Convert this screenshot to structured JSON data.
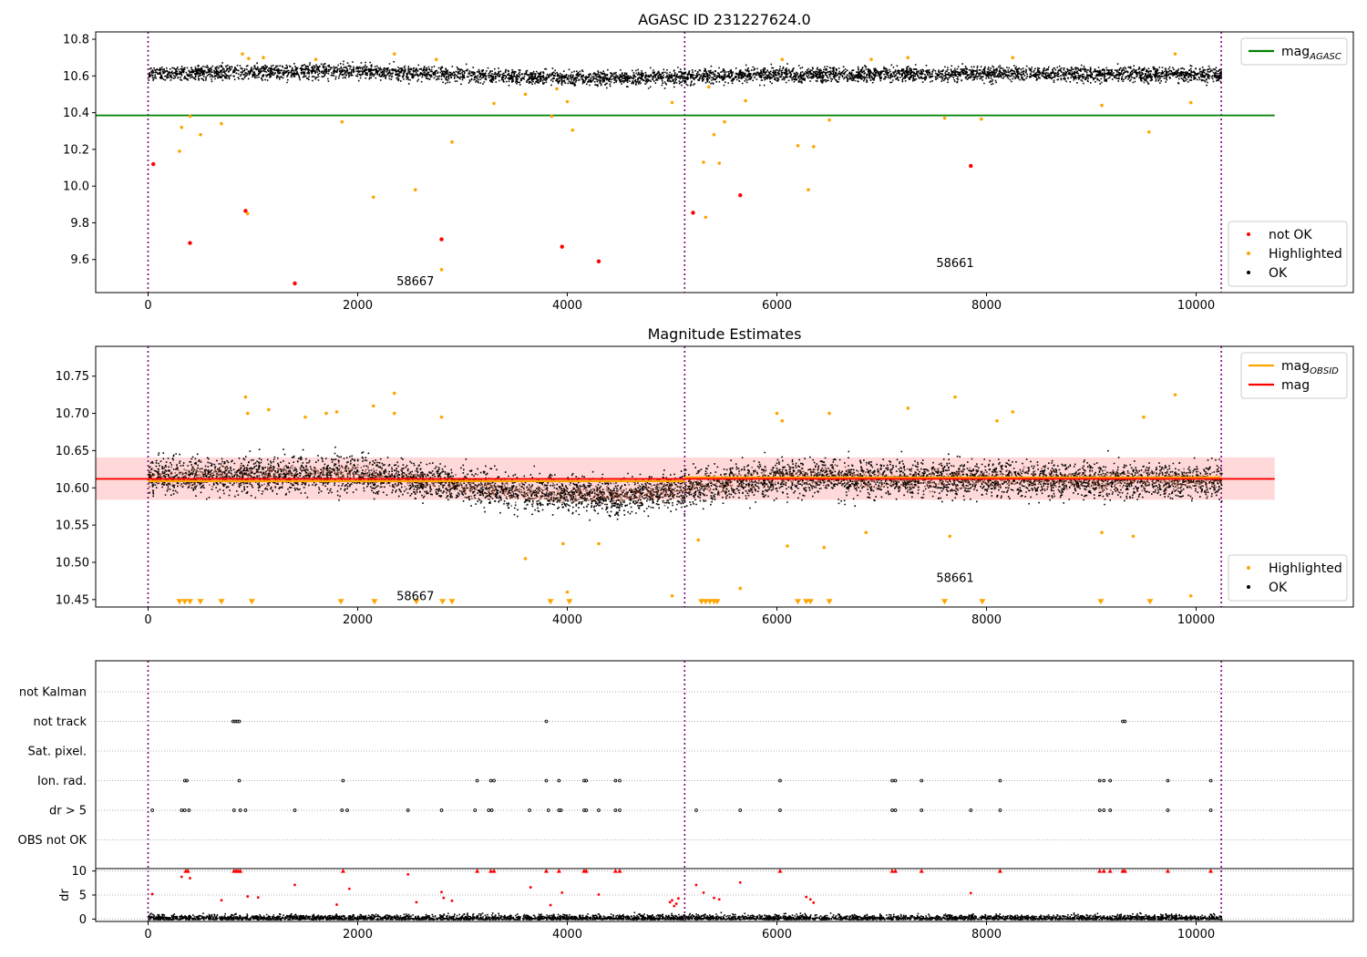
{
  "chart_data": [
    {
      "type": "scatter",
      "title": "AGASC ID 231227624.0",
      "xlim": [
        -500,
        11500
      ],
      "ylim": [
        9.42,
        10.84
      ],
      "xticks": [
        0,
        2000,
        4000,
        6000,
        8000,
        10000
      ],
      "yticks": [
        9.6,
        9.8,
        10.0,
        10.2,
        10.4,
        10.6,
        10.8
      ],
      "obsid_boundaries": [
        0,
        5120,
        10240
      ],
      "obsid_labels": [
        {
          "text": "58667",
          "x": 2550,
          "y": 9.485
        },
        {
          "text": "58661",
          "x": 7700,
          "y": 9.585
        }
      ],
      "ok_band": {
        "x0": 0,
        "x1": 10240,
        "segments": [
          [
            0,
            10.62
          ],
          [
            2000,
            10.63
          ],
          [
            4000,
            10.59
          ],
          [
            5100,
            10.6
          ],
          [
            6000,
            10.61
          ],
          [
            8000,
            10.615
          ],
          [
            10240,
            10.61
          ]
        ],
        "spread": 0.04
      },
      "lines": [
        {
          "name": "mag_AGASC",
          "color": "#008000",
          "y": 10.385,
          "x0": -500,
          "x1": 10750
        }
      ],
      "series": [
        {
          "name": "not OK",
          "color": "#ff0000",
          "points": [
            [
              50,
              10.12
            ],
            [
              400,
              9.69
            ],
            [
              930,
              9.865
            ],
            [
              1400,
              9.47
            ],
            [
              2800,
              9.71
            ],
            [
              3950,
              9.67
            ],
            [
              4300,
              9.59
            ],
            [
              5200,
              9.855
            ],
            [
              5650,
              9.95
            ],
            [
              7850,
              10.11
            ]
          ]
        },
        {
          "name": "Highlighted",
          "color": "#ffa500",
          "points": [
            [
              300,
              10.19
            ],
            [
              320,
              10.32
            ],
            [
              400,
              10.38
            ],
            [
              500,
              10.28
            ],
            [
              700,
              10.34
            ],
            [
              900,
              10.72
            ],
            [
              950,
              9.85
            ],
            [
              1100,
              10.7
            ],
            [
              1850,
              10.35
            ],
            [
              2150,
              9.94
            ],
            [
              2550,
              9.98
            ],
            [
              2800,
              9.545
            ],
            [
              2900,
              10.24
            ],
            [
              3300,
              10.45
            ],
            [
              3600,
              10.5
            ],
            [
              3850,
              10.38
            ],
            [
              4000,
              10.46
            ],
            [
              4050,
              10.305
            ],
            [
              5000,
              10.455
            ],
            [
              5300,
              10.13
            ],
            [
              5320,
              9.83
            ],
            [
              5400,
              10.28
            ],
            [
              5450,
              10.125
            ],
            [
              5500,
              10.35
            ],
            [
              5700,
              10.465
            ],
            [
              6200,
              10.22
            ],
            [
              6300,
              9.98
            ],
            [
              6350,
              10.215
            ],
            [
              6500,
              10.36
            ],
            [
              7600,
              10.37
            ],
            [
              7950,
              10.365
            ],
            [
              9100,
              10.44
            ],
            [
              9550,
              10.295
            ],
            [
              9950,
              10.455
            ],
            [
              960,
              10.695
            ],
            [
              1600,
              10.69
            ],
            [
              2350,
              10.72
            ],
            [
              2750,
              10.69
            ],
            [
              3900,
              10.53
            ],
            [
              5350,
              10.54
            ],
            [
              6050,
              10.69
            ],
            [
              6900,
              10.69
            ],
            [
              7250,
              10.7
            ],
            [
              8250,
              10.7
            ],
            [
              9800,
              10.72
            ]
          ]
        }
      ],
      "legends": [
        {
          "entries": [
            {
              "label": "mag",
              "sub": "AGASC",
              "kind": "line",
              "color": "#008000"
            }
          ]
        },
        {
          "entries": [
            {
              "label": "not OK",
              "kind": "dot",
              "color": "#ff0000"
            },
            {
              "label": "Highlighted",
              "kind": "dot",
              "color": "#ffa500"
            },
            {
              "label": "OK",
              "kind": "dot",
              "color": "#000000"
            }
          ]
        }
      ]
    },
    {
      "type": "scatter",
      "title": "Magnitude Estimates",
      "xlim": [
        -500,
        11500
      ],
      "ylim": [
        10.44,
        10.79
      ],
      "xticks": [
        0,
        2000,
        4000,
        6000,
        8000,
        10000
      ],
      "yticks": [
        10.45,
        10.5,
        10.55,
        10.6,
        10.65,
        10.7,
        10.75
      ],
      "obsid_boundaries": [
        0,
        5120,
        10240
      ],
      "obsid_labels": [
        {
          "text": "58667",
          "x": 2550,
          "y": 10.455
        },
        {
          "text": "58661",
          "x": 7700,
          "y": 10.48
        }
      ],
      "ok_band": {
        "x0": 0,
        "x1": 10240,
        "segments": [
          [
            0,
            10.615
          ],
          [
            2000,
            10.62
          ],
          [
            3500,
            10.595
          ],
          [
            4500,
            10.59
          ],
          [
            5100,
            10.6
          ],
          [
            6000,
            10.615
          ],
          [
            8000,
            10.612
          ],
          [
            10240,
            10.61
          ]
        ],
        "spread": 0.025
      },
      "shaded_band": {
        "x0": -500,
        "x1": 10750,
        "y0": 10.584,
        "y1": 10.641,
        "color": "#ffcccc"
      },
      "lines": [
        {
          "name": "mag_OBSID",
          "color": "#ffa500",
          "segments": [
            [
              0,
              5120,
              10.609
            ],
            [
              5120,
              10240,
              10.614
            ]
          ]
        },
        {
          "name": "mag",
          "color": "#ff0000",
          "y": 10.612,
          "x0": -500,
          "x1": 10750
        }
      ],
      "series": [
        {
          "name": "Highlighted",
          "color": "#ffa500",
          "points": [
            [
              930,
              10.722
            ],
            [
              950,
              10.7
            ],
            [
              1150,
              10.705
            ],
            [
              1500,
              10.695
            ],
            [
              1700,
              10.7
            ],
            [
              1800,
              10.702
            ],
            [
              2150,
              10.71
            ],
            [
              2350,
              10.727
            ],
            [
              2350,
              10.7
            ],
            [
              2800,
              10.695
            ],
            [
              3600,
              10.505
            ],
            [
              3960,
              10.525
            ],
            [
              4000,
              10.46
            ],
            [
              4300,
              10.525
            ],
            [
              5000,
              10.455
            ],
            [
              5250,
              10.53
            ],
            [
              5650,
              10.465
            ],
            [
              6000,
              10.7
            ],
            [
              6050,
              10.69
            ],
            [
              6100,
              10.522
            ],
            [
              6450,
              10.52
            ],
            [
              6500,
              10.7
            ],
            [
              6850,
              10.54
            ],
            [
              7250,
              10.707
            ],
            [
              7650,
              10.535
            ],
            [
              7700,
              10.722
            ],
            [
              8100,
              10.69
            ],
            [
              8250,
              10.702
            ],
            [
              9100,
              10.54
            ],
            [
              9400,
              10.535
            ],
            [
              9500,
              10.695
            ],
            [
              9800,
              10.725
            ],
            [
              9950,
              10.455
            ]
          ]
        }
      ],
      "markers": {
        "color": "#ffa500",
        "y": 10.447,
        "x": [
          300,
          350,
          400,
          500,
          700,
          990,
          1840,
          2160,
          2560,
          2810,
          2900,
          3840,
          4020,
          5280,
          5320,
          5360,
          5400,
          5430,
          6200,
          6280,
          6320,
          6500,
          7600,
          7960,
          9090,
          9560
        ]
      },
      "legends": [
        {
          "entries": [
            {
              "label": "mag",
              "sub": "OBSID",
              "kind": "line",
              "color": "#ffa500"
            },
            {
              "label": "mag",
              "kind": "line",
              "color": "#ff0000"
            }
          ]
        },
        {
          "entries": [
            {
              "label": "Highlighted",
              "kind": "dot",
              "color": "#ffa500"
            },
            {
              "label": "OK",
              "kind": "dot",
              "color": "#000000"
            }
          ]
        }
      ]
    },
    {
      "type": "scatter",
      "xlim": [
        -500,
        11500
      ],
      "xticks": [
        0,
        2000,
        4000,
        6000,
        8000,
        10000
      ],
      "categories": [
        "not Kalman",
        "not track",
        "Sat. pixel.",
        "Ion. rad.",
        "dr > 5",
        "OBS not OK"
      ],
      "obsid_boundaries": [
        0,
        5120,
        10240
      ],
      "flags": {
        "not track": [
          810,
          830,
          850,
          870,
          3800,
          9300,
          9320
        ],
        "Ion. rad.": [
          350,
          370,
          870,
          1860,
          3140,
          3270,
          3300,
          3800,
          3920,
          4160,
          4180,
          4460,
          4500,
          6030,
          7100,
          7130,
          7380,
          8130,
          9080,
          9120,
          9180,
          9730,
          10140
        ],
        "dr > 5": [
          40,
          320,
          350,
          390,
          820,
          880,
          930,
          1400,
          1850,
          1900,
          2480,
          2800,
          3120,
          3250,
          3280,
          3640,
          3820,
          3920,
          3940,
          4160,
          4180,
          4300,
          4460,
          4500,
          5230,
          5650,
          6030,
          7100,
          7130,
          7380,
          7850,
          8130,
          9080,
          9120,
          9180,
          9730,
          10140
        ]
      },
      "dr": {
        "ylabel": "dr",
        "yticks": [
          0,
          5,
          10
        ],
        "ylim": [
          -0.5,
          10.5
        ],
        "typical_max": 1.8,
        "outliers": [
          [
            40,
            5.2
          ],
          [
            320,
            8.8
          ],
          [
            400,
            8.5
          ],
          [
            700,
            3.9
          ],
          [
            950,
            4.7
          ],
          [
            1050,
            4.5
          ],
          [
            1400,
            7.1
          ],
          [
            1800,
            3.0
          ],
          [
            1920,
            6.3
          ],
          [
            2480,
            9.3
          ],
          [
            2560,
            3.5
          ],
          [
            2800,
            5.6
          ],
          [
            2820,
            4.4
          ],
          [
            2900,
            3.8
          ],
          [
            3650,
            6.6
          ],
          [
            3840,
            2.9
          ],
          [
            3950,
            5.5
          ],
          [
            4300,
            5.1
          ],
          [
            4980,
            3.5
          ],
          [
            5000,
            3.9
          ],
          [
            5020,
            2.7
          ],
          [
            5040,
            3.2
          ],
          [
            5060,
            4.3
          ],
          [
            5230,
            7.1
          ],
          [
            5300,
            5.5
          ],
          [
            5400,
            4.4
          ],
          [
            5450,
            4.1
          ],
          [
            5650,
            7.6
          ],
          [
            6280,
            4.6
          ],
          [
            6320,
            4.1
          ],
          [
            6350,
            3.4
          ],
          [
            7850,
            5.4
          ]
        ],
        "capped": [
          360,
          380,
          820,
          840,
          860,
          880,
          1860,
          3140,
          3270,
          3300,
          3800,
          3920,
          4160,
          4180,
          4460,
          4500,
          6030,
          7100,
          7130,
          7380,
          8130,
          9080,
          9120,
          9180,
          9300,
          9320,
          9730,
          10140
        ]
      }
    }
  ]
}
